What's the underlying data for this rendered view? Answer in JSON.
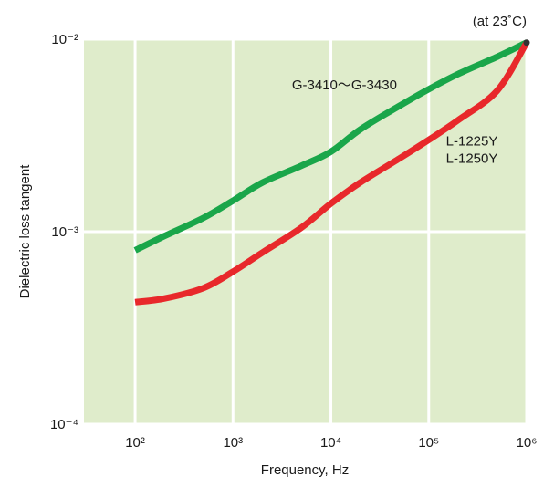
{
  "chart_data": {
    "type": "line",
    "title": "",
    "condition_note": "(at 23˚C)",
    "xlabel": "Frequency, Hz",
    "ylabel": "Dielectric loss tangent",
    "xscale": "log",
    "yscale": "log",
    "xlim": [
      30,
      1000000
    ],
    "ylim": [
      0.0001,
      0.01
    ],
    "grid": true,
    "plot_background": "#dfeccb",
    "grid_color": "#ffffff",
    "x_ticks": [
      {
        "value": 100,
        "label": "10²"
      },
      {
        "value": 1000,
        "label": "10³"
      },
      {
        "value": 10000,
        "label": "10⁴"
      },
      {
        "value": 100000,
        "label": "10⁵"
      },
      {
        "value": 1000000,
        "label": "10⁶"
      }
    ],
    "y_ticks": [
      {
        "value": 0.0001,
        "label": "10⁻⁴"
      },
      {
        "value": 0.001,
        "label": "10⁻³"
      },
      {
        "value": 0.01,
        "label": "10⁻²"
      }
    ],
    "series": [
      {
        "name": "G-3410～G-3430",
        "color": "#1aa64a",
        "label_lines": [
          "G-3410～G-3430"
        ],
        "label_anchor": {
          "x": 4000,
          "y": 0.0055
        },
        "x": [
          100,
          200,
          500,
          1000,
          2000,
          5000,
          10000,
          20000,
          50000,
          100000,
          200000,
          500000,
          1000000
        ],
        "y": [
          0.0008,
          0.00095,
          0.00118,
          0.00145,
          0.0018,
          0.0022,
          0.0026,
          0.0034,
          0.0045,
          0.0055,
          0.0066,
          0.0081,
          0.0096
        ]
      },
      {
        "name": "L-1225Y / L-1250Y",
        "color": "#e8282b",
        "label_lines": [
          "L-1225Y",
          "L-1250Y"
        ],
        "label_anchor": {
          "x": 150000,
          "y": 0.0028
        },
        "x": [
          100,
          200,
          500,
          1000,
          2000,
          5000,
          10000,
          20000,
          50000,
          100000,
          200000,
          500000,
          1000000
        ],
        "y": [
          0.00043,
          0.00045,
          0.00051,
          0.00062,
          0.00078,
          0.00105,
          0.0014,
          0.0018,
          0.0024,
          0.003,
          0.0038,
          0.0054,
          0.0096
        ]
      }
    ]
  }
}
